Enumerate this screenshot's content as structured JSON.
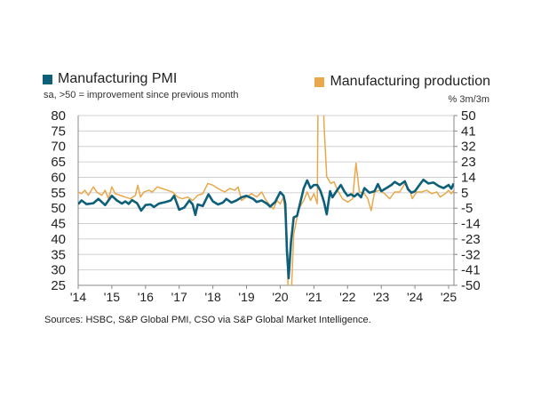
{
  "colors": {
    "pmi": "#0e5f7a",
    "production": "#e8a84b"
  },
  "chart_data": {
    "type": "line",
    "legend": "top",
    "grid": true,
    "left_axis": {
      "subtitle": "sa, >50 = improvement since previous month",
      "ylim": [
        25,
        80
      ],
      "ticks": [
        "80",
        "75",
        "70",
        "65",
        "60",
        "55",
        "50",
        "45",
        "40",
        "35",
        "30",
        "25"
      ]
    },
    "right_axis": {
      "subtitle": "% 3m/3m",
      "ylim": [
        -50,
        50
      ],
      "ticks": [
        "50",
        "41",
        "32",
        "23",
        "14",
        "5",
        "-5",
        "-14",
        "-23",
        "-32",
        "-41",
        "-50"
      ]
    },
    "x_ticks": [
      "'14",
      "'15",
      "'16",
      "'17",
      "'18",
      "'19",
      "'20",
      "'21",
      "'22",
      "'23",
      "'24",
      "'25"
    ],
    "series": [
      {
        "name": "Manufacturing PMI",
        "axis": "left",
        "points": [
          [
            2014.0,
            51.3
          ],
          [
            2014.1,
            52.5
          ],
          [
            2014.25,
            51.3
          ],
          [
            2014.45,
            51.6
          ],
          [
            2014.6,
            53
          ],
          [
            2014.8,
            51
          ],
          [
            2015.0,
            54
          ],
          [
            2015.15,
            52.5
          ],
          [
            2015.3,
            51.5
          ],
          [
            2015.4,
            52.2
          ],
          [
            2015.5,
            51.4
          ],
          [
            2015.6,
            52.6
          ],
          [
            2015.75,
            51.6
          ],
          [
            2015.87,
            49.2
          ],
          [
            2016.0,
            51
          ],
          [
            2016.15,
            51.2
          ],
          [
            2016.25,
            50.4
          ],
          [
            2016.4,
            51.5
          ],
          [
            2016.6,
            52
          ],
          [
            2016.75,
            52.5
          ],
          [
            2016.85,
            54
          ],
          [
            2017.0,
            49.5
          ],
          [
            2017.15,
            50.2
          ],
          [
            2017.3,
            52.5
          ],
          [
            2017.4,
            51.2
          ],
          [
            2017.48,
            47.8
          ],
          [
            2017.55,
            51.2
          ],
          [
            2017.7,
            50.7
          ],
          [
            2017.87,
            54.5
          ],
          [
            2018.0,
            52.2
          ],
          [
            2018.15,
            51.2
          ],
          [
            2018.3,
            51.8
          ],
          [
            2018.4,
            53
          ],
          [
            2018.55,
            51.8
          ],
          [
            2018.7,
            52.5
          ],
          [
            2018.85,
            53.5
          ],
          [
            2019.0,
            54
          ],
          [
            2019.2,
            53
          ],
          [
            2019.3,
            52
          ],
          [
            2019.45,
            52.5
          ],
          [
            2019.6,
            51.5
          ],
          [
            2019.7,
            50.5
          ],
          [
            2019.85,
            52
          ],
          [
            2020.0,
            55.2
          ],
          [
            2020.1,
            54
          ],
          [
            2020.15,
            51.5
          ],
          [
            2020.2,
            36
          ],
          [
            2020.25,
            27.3
          ],
          [
            2020.32,
            39
          ],
          [
            2020.4,
            47
          ],
          [
            2020.5,
            47.5
          ],
          [
            2020.6,
            52
          ],
          [
            2020.7,
            56.5
          ],
          [
            2020.8,
            59
          ],
          [
            2020.9,
            56.5
          ],
          [
            2021.0,
            57.5
          ],
          [
            2021.1,
            57.5
          ],
          [
            2021.2,
            55.5
          ],
          [
            2021.3,
            52
          ],
          [
            2021.38,
            48
          ],
          [
            2021.48,
            55.5
          ],
          [
            2021.55,
            53.5
          ],
          [
            2021.7,
            56
          ],
          [
            2021.8,
            57.5
          ],
          [
            2021.9,
            55.5
          ],
          [
            2022.0,
            54
          ],
          [
            2022.1,
            54.5
          ],
          [
            2022.2,
            53.8
          ],
          [
            2022.3,
            54.7
          ],
          [
            2022.4,
            53.5
          ],
          [
            2022.5,
            56.5
          ],
          [
            2022.65,
            55
          ],
          [
            2022.8,
            55.5
          ],
          [
            2022.9,
            57.8
          ],
          [
            2023.0,
            55.5
          ],
          [
            2023.15,
            56.5
          ],
          [
            2023.3,
            57.5
          ],
          [
            2023.4,
            58.5
          ],
          [
            2023.55,
            57.5
          ],
          [
            2023.7,
            58.7
          ],
          [
            2023.8,
            56
          ],
          [
            2023.9,
            55
          ],
          [
            2024.0,
            55.5
          ],
          [
            2024.1,
            57
          ],
          [
            2024.25,
            59.2
          ],
          [
            2024.4,
            58
          ],
          [
            2024.55,
            58.3
          ],
          [
            2024.7,
            57.2
          ],
          [
            2024.85,
            56.5
          ],
          [
            2025.0,
            57.5
          ],
          [
            2025.08,
            56.3
          ],
          [
            2025.15,
            58
          ]
        ]
      },
      {
        "name": "Manufacturing production",
        "axis": "right",
        "points": [
          [
            2014.0,
            5
          ],
          [
            2014.1,
            4
          ],
          [
            2014.2,
            6
          ],
          [
            2014.3,
            3
          ],
          [
            2014.45,
            8
          ],
          [
            2014.55,
            5
          ],
          [
            2014.7,
            3
          ],
          [
            2014.8,
            6
          ],
          [
            2014.9,
            1
          ],
          [
            2015.0,
            8
          ],
          [
            2015.1,
            4
          ],
          [
            2015.25,
            3
          ],
          [
            2015.4,
            2
          ],
          [
            2015.55,
            1
          ],
          [
            2015.7,
            3
          ],
          [
            2015.77,
            9
          ],
          [
            2015.85,
            2
          ],
          [
            2015.95,
            5
          ],
          [
            2016.1,
            6
          ],
          [
            2016.2,
            5
          ],
          [
            2016.35,
            8
          ],
          [
            2016.5,
            7
          ],
          [
            2016.65,
            6
          ],
          [
            2016.8,
            5
          ],
          [
            2016.95,
            2
          ],
          [
            2017.1,
            1
          ],
          [
            2017.25,
            2
          ],
          [
            2017.4,
            0
          ],
          [
            2017.55,
            3
          ],
          [
            2017.7,
            4
          ],
          [
            2017.85,
            10
          ],
          [
            2018.0,
            9
          ],
          [
            2018.15,
            7
          ],
          [
            2018.35,
            5
          ],
          [
            2018.5,
            7
          ],
          [
            2018.65,
            6
          ],
          [
            2018.75,
            8
          ],
          [
            2018.85,
            0
          ],
          [
            2019.0,
            2
          ],
          [
            2019.15,
            4
          ],
          [
            2019.3,
            2
          ],
          [
            2019.45,
            5
          ],
          [
            2019.55,
            1
          ],
          [
            2019.7,
            -3
          ],
          [
            2019.8,
            -5
          ],
          [
            2019.9,
            0
          ],
          [
            2020.0,
            -2
          ],
          [
            2020.1,
            2
          ],
          [
            2020.2,
            -20
          ],
          [
            2020.25,
            -70
          ],
          [
            2020.32,
            -60
          ],
          [
            2020.4,
            -20
          ],
          [
            2020.55,
            -5
          ],
          [
            2020.7,
            0
          ],
          [
            2020.8,
            5
          ],
          [
            2020.9,
            0
          ],
          [
            2021.0,
            4
          ],
          [
            2021.1,
            -2
          ],
          [
            2021.13,
            80
          ],
          [
            2021.25,
            85
          ],
          [
            2021.3,
            45
          ],
          [
            2021.38,
            14
          ],
          [
            2021.5,
            10
          ],
          [
            2021.6,
            11
          ],
          [
            2021.7,
            6
          ],
          [
            2021.85,
            1
          ],
          [
            2022.0,
            -1
          ],
          [
            2022.15,
            1
          ],
          [
            2022.25,
            22
          ],
          [
            2022.35,
            5
          ],
          [
            2022.5,
            4
          ],
          [
            2022.6,
            1
          ],
          [
            2022.7,
            -6
          ],
          [
            2022.8,
            5
          ],
          [
            2022.95,
            6
          ],
          [
            2023.1,
            4
          ],
          [
            2023.25,
            1
          ],
          [
            2023.4,
            5
          ],
          [
            2023.55,
            5
          ],
          [
            2023.7,
            10
          ],
          [
            2023.85,
            6
          ],
          [
            2023.92,
            1
          ],
          [
            2024.05,
            5
          ],
          [
            2024.2,
            5
          ],
          [
            2024.35,
            6
          ],
          [
            2024.5,
            4
          ],
          [
            2024.65,
            5
          ],
          [
            2024.75,
            2
          ],
          [
            2024.9,
            4
          ],
          [
            2025.0,
            6
          ],
          [
            2025.08,
            4
          ],
          [
            2025.15,
            6
          ]
        ]
      }
    ],
    "source": "Sources: HSBC, S&P Global PMI, CSO via S&P Global Market Intelligence."
  }
}
